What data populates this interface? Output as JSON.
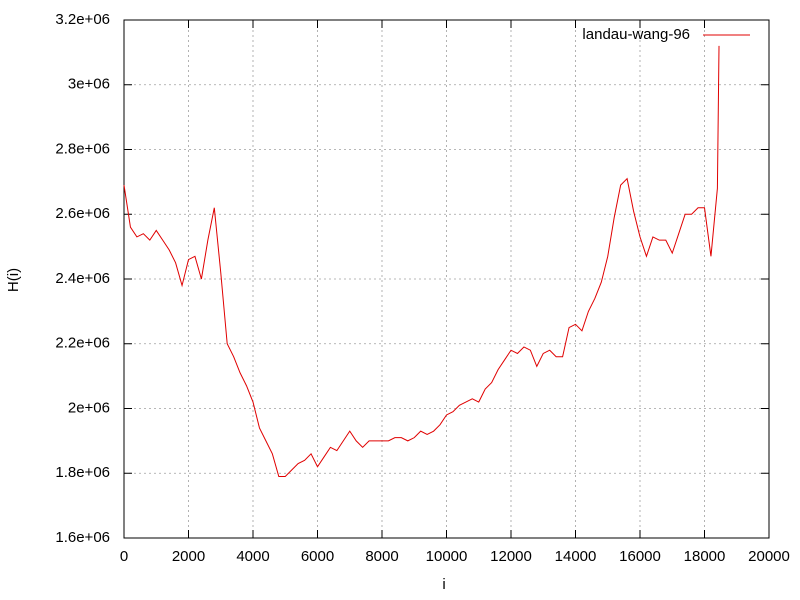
{
  "chart_data": {
    "type": "line",
    "xlabel": "i",
    "ylabel": "H(i)",
    "x": [
      0,
      200,
      400,
      600,
      800,
      1000,
      1200,
      1400,
      1600,
      1800,
      2000,
      2200,
      2400,
      2600,
      2800,
      3000,
      3200,
      3400,
      3600,
      3800,
      4000,
      4200,
      4400,
      4600,
      4800,
      5000,
      5200,
      5400,
      5600,
      5800,
      6000,
      6200,
      6400,
      6600,
      6800,
      7000,
      7200,
      7400,
      7600,
      7800,
      8000,
      8200,
      8400,
      8600,
      8800,
      9000,
      9200,
      9400,
      9600,
      9800,
      10000,
      10200,
      10400,
      10600,
      10800,
      11000,
      11200,
      11400,
      11600,
      11800,
      12000,
      12200,
      12400,
      12600,
      12800,
      13000,
      13200,
      13400,
      13600,
      13800,
      14000,
      14200,
      14400,
      14600,
      14800,
      15000,
      15200,
      15400,
      15600,
      15800,
      16000,
      16200,
      16400,
      16600,
      16800,
      17000,
      17200,
      17400,
      17600,
      17800,
      18000,
      18200,
      18400,
      18450
    ],
    "series": [
      {
        "name": "landau-wang-96",
        "color": "#e00000",
        "values": [
          2690000,
          2560000,
          2530000,
          2540000,
          2520000,
          2550000,
          2520000,
          2490000,
          2450000,
          2380000,
          2460000,
          2470000,
          2400000,
          2520000,
          2620000,
          2420000,
          2200000,
          2160000,
          2110000,
          2070000,
          2020000,
          1940000,
          1900000,
          1860000,
          1790000,
          1790000,
          1810000,
          1830000,
          1840000,
          1860000,
          1820000,
          1850000,
          1880000,
          1870000,
          1900000,
          1930000,
          1900000,
          1880000,
          1900000,
          1900000,
          1900000,
          1900000,
          1910000,
          1910000,
          1900000,
          1910000,
          1930000,
          1920000,
          1930000,
          1950000,
          1980000,
          1990000,
          2010000,
          2020000,
          2030000,
          2020000,
          2060000,
          2080000,
          2120000,
          2150000,
          2180000,
          2170000,
          2190000,
          2180000,
          2130000,
          2170000,
          2180000,
          2160000,
          2160000,
          2250000,
          2260000,
          2240000,
          2300000,
          2340000,
          2390000,
          2470000,
          2590000,
          2690000,
          2710000,
          2610000,
          2530000,
          2470000,
          2530000,
          2520000,
          2520000,
          2480000,
          2540000,
          2600000,
          2600000,
          2620000,
          2620000,
          2470000,
          2680000,
          3120000
        ]
      }
    ],
    "xlim": [
      0,
      20000
    ],
    "xticks": [
      0,
      2000,
      4000,
      6000,
      8000,
      10000,
      12000,
      14000,
      16000,
      18000,
      20000
    ],
    "ylim": [
      1600000,
      3200000
    ],
    "yticks": [
      {
        "value": 1600000,
        "label": "1.6e+06"
      },
      {
        "value": 1800000,
        "label": "1.8e+06"
      },
      {
        "value": 2000000,
        "label": "2e+06"
      },
      {
        "value": 2200000,
        "label": "2.2e+06"
      },
      {
        "value": 2400000,
        "label": "2.4e+06"
      },
      {
        "value": 2600000,
        "label": "2.6e+06"
      },
      {
        "value": 2800000,
        "label": "2.8e+06"
      },
      {
        "value": 3000000,
        "label": "3e+06"
      },
      {
        "value": 3200000,
        "label": "3.2e+06"
      }
    ],
    "grid": true,
    "legend_position": "top-right"
  }
}
